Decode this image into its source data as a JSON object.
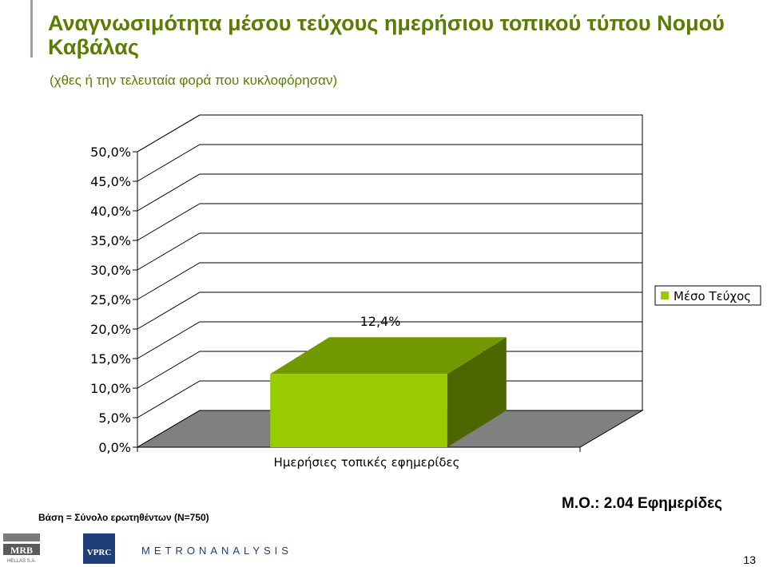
{
  "title": "Αναγνωσιμότητα μέσου τεύχους ημερήσιου τοπικού τύπου Νομού Καβάλας",
  "subtitle": "(χθες ή την τελευταία φορά που κυκλοφόρησαν)",
  "footer": {
    "base_note": "Βάση = Σύνολο ερωτηθέντων (N=750)",
    "mean_note": "Μ.Ο.: 2.04 Εφημερίδες",
    "page_number": "13",
    "logo_mrb": "MRB",
    "logo_mrb_sub": "HELLAS S.A.",
    "logo_vprc": "VPRC",
    "logo_metron": "METRONANALYSIS"
  },
  "colors": {
    "title": "#5a7d00",
    "bar_front": "#99cc00",
    "bar_top": "#739900",
    "bar_side": "#4d6600",
    "floor": "#808080"
  },
  "chart_data": {
    "type": "bar",
    "categories": [
      "Ημερήσιες τοπικές εφημερίδες"
    ],
    "series": [
      {
        "name": "Μέσο Τεύχος",
        "values": [
          12.4
        ]
      }
    ],
    "data_labels": [
      "12,4%"
    ],
    "ylim": [
      0,
      50
    ],
    "yticks": [
      "0,0%",
      "5,0%",
      "10,0%",
      "15,0%",
      "20,0%",
      "25,0%",
      "30,0%",
      "35,0%",
      "40,0%",
      "45,0%",
      "50,0%"
    ],
    "grid": true,
    "legend_position": "right",
    "three_d": true
  }
}
